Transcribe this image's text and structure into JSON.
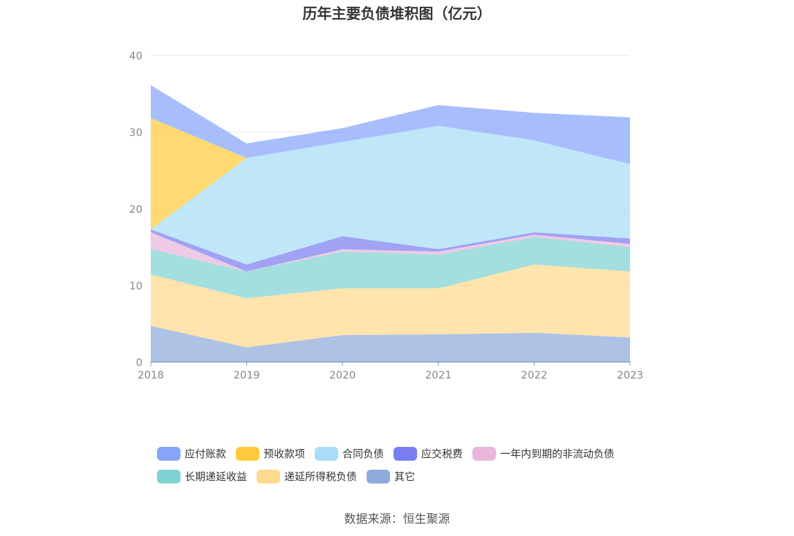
{
  "chart_data": {
    "type": "area",
    "stacked": true,
    "title": "历年主要负债堆积图（亿元）",
    "categories": [
      "2018",
      "2019",
      "2020",
      "2021",
      "2022",
      "2023"
    ],
    "ylim": [
      0,
      40
    ],
    "yticks": [
      0,
      10,
      20,
      30,
      40
    ],
    "grid": true,
    "legend_position": "bottom",
    "series": [
      {
        "name": "其它",
        "color": "#8fabdc",
        "values": [
          4.7,
          1.9,
          3.5,
          3.6,
          3.8,
          3.2
        ]
      },
      {
        "name": "递延所得税负债",
        "color": "#ffd98e",
        "values": [
          6.7,
          6.4,
          6.1,
          6.0,
          8.9,
          8.6
        ]
      },
      {
        "name": "长期递延收益",
        "color": "#7fd3d3",
        "values": [
          3.3,
          3.5,
          4.8,
          4.4,
          3.6,
          3.2
        ]
      },
      {
        "name": "一年内到期的非流动负债",
        "color": "#e9b6d9",
        "values": [
          2.2,
          0.0,
          0.3,
          0.4,
          0.3,
          0.4
        ]
      },
      {
        "name": "应交税费",
        "color": "#7b7ef0",
        "values": [
          0.4,
          0.9,
          1.7,
          0.3,
          0.3,
          0.7
        ]
      },
      {
        "name": "合同负债",
        "color": "#a8dcf7",
        "values": [
          0.0,
          13.9,
          12.3,
          16.1,
          12.0,
          9.7
        ]
      },
      {
        "name": "预收款项",
        "color": "#ffca3a",
        "values": [
          14.5,
          0.0,
          0.0,
          0.0,
          0.0,
          0.0
        ]
      },
      {
        "name": "应付账款",
        "color": "#86a5fb",
        "values": [
          4.3,
          1.9,
          1.8,
          2.7,
          3.6,
          6.1
        ]
      }
    ]
  },
  "legend": [
    [
      {
        "label": "应付账款",
        "color": "#86a5fb"
      },
      {
        "label": "预收款项",
        "color": "#ffca3a"
      },
      {
        "label": "合同负债",
        "color": "#a8dcf7"
      },
      {
        "label": "应交税费",
        "color": "#7b7ef0"
      },
      {
        "label": "一年内到期的非流动负债",
        "color": "#e9b6d9"
      }
    ],
    [
      {
        "label": "长期递延收益",
        "color": "#7fd3d3"
      },
      {
        "label": "递延所得税负债",
        "color": "#ffd98e"
      },
      {
        "label": "其它",
        "color": "#8fabdc"
      }
    ]
  ],
  "source": "数据来源：恒生聚源"
}
